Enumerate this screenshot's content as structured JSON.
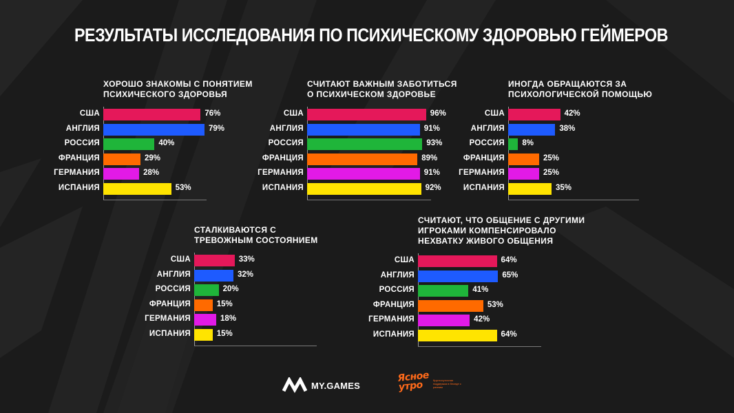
{
  "title": "РЕЗУЛЬТАТЫ ИССЛЕДОВАНИЯ ПО ПСИХИЧЕСКОМУ ЗДОРОВЬЮ ГЕЙМЕРОВ",
  "colors": {
    "background": "#1b1b1b",
    "stripes": "#262626",
    "США": "#e5185a",
    "АНГЛИЯ": "#1e5bff",
    "РОССИЯ": "#1fb53a",
    "ФРАНЦИЯ": "#ff6a00",
    "ГЕРМАНИЯ": "#e21ae6",
    "ИСПАНИЯ": "#ffe400"
  },
  "logos": {
    "mygames": "MY.GAMES",
    "mygames_icon": "my-games-logo-icon",
    "yasnoe": "Ясное\nутро",
    "yasnoe_note": "Круглосуточная поддержка в беседе с ранним"
  },
  "chart_data": [
    {
      "type": "bar",
      "orientation": "horizontal",
      "title": "ХОРОШО ЗНАКОМЫ С ПОНЯТИЕМ\nПСИХИЧЕСКОГО ЗДОРОВЬЯ",
      "categories": [
        "США",
        "АНГЛИЯ",
        "РОССИЯ",
        "ФРАНЦИЯ",
        "ГЕРМАНИЯ",
        "ИСПАНИЯ"
      ],
      "values": [
        76,
        79,
        40,
        29,
        28,
        53
      ],
      "labels": [
        "76%",
        "79%",
        "40%",
        "29%",
        "28%",
        "53%"
      ],
      "xlim": [
        0,
        100
      ],
      "grid": false,
      "legend": "none"
    },
    {
      "type": "bar",
      "orientation": "horizontal",
      "title": "СЧИТАЮТ ВАЖНЫМ ЗАБОТИТЬСЯ\nО ПСИХИЧЕСКОМ ЗДОРОВЬЕ",
      "categories": [
        "США",
        "АНГЛИЯ",
        "РОССИЯ",
        "ФРАНЦИЯ",
        "ГЕРМАНИЯ",
        "ИСПАНИЯ"
      ],
      "values": [
        96,
        91,
        93,
        89,
        91,
        92
      ],
      "labels": [
        "96%",
        "91%",
        "93%",
        "89%",
        "91%",
        "92%"
      ],
      "xlim": [
        0,
        100
      ],
      "grid": false,
      "legend": "none"
    },
    {
      "type": "bar",
      "orientation": "horizontal",
      "title": "ИНОГДА ОБРАЩАЮТСЯ ЗА\nПСИХОЛОГИЧЕСКОЙ ПОМОЩЬЮ",
      "categories": [
        "США",
        "АНГЛИЯ",
        "РОССИЯ",
        "ФРАНЦИЯ",
        "ГЕРМАНИЯ",
        "ИСПАНИЯ"
      ],
      "values": [
        42,
        38,
        8,
        25,
        25,
        35
      ],
      "labels": [
        "42%",
        "38%",
        "8%",
        "25%",
        "25%",
        "35%"
      ],
      "xlim": [
        0,
        100
      ],
      "grid": false,
      "legend": "none"
    },
    {
      "type": "bar",
      "orientation": "horizontal",
      "title": "СТАЛКИВАЮТСЯ С\nТРЕВОЖНЫМ СОСТОЯНИЕМ",
      "categories": [
        "США",
        "АНГЛИЯ",
        "РОССИЯ",
        "ФРАНЦИЯ",
        "ГЕРМАНИЯ",
        "ИСПАНИЯ"
      ],
      "values": [
        33,
        32,
        20,
        15,
        18,
        15
      ],
      "labels": [
        "33%",
        "32%",
        "20%",
        "15%",
        "18%",
        "15%"
      ],
      "xlim": [
        0,
        100
      ],
      "grid": false,
      "legend": "none"
    },
    {
      "type": "bar",
      "orientation": "horizontal",
      "title": "СЧИТАЮТ, ЧТО ОБЩЕНИЕ С ДРУГИМИ\nИГРОКАМИ КОМПЕНСИРОВАЛО\nНЕХВАТКУ ЖИВОГО ОБЩЕНИЯ",
      "categories": [
        "США",
        "АНГЛИЯ",
        "РОССИЯ",
        "ФРАНЦИЯ",
        "ГЕРМАНИЯ",
        "ИСПАНИЯ"
      ],
      "values": [
        64,
        65,
        41,
        53,
        42,
        64
      ],
      "labels": [
        "64%",
        "65%",
        "41%",
        "53%",
        "42%",
        "64%"
      ],
      "xlim": [
        0,
        100
      ],
      "grid": false,
      "legend": "none"
    }
  ]
}
